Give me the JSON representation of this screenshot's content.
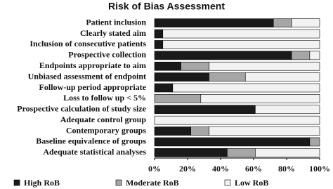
{
  "chart_data": {
    "type": "stacked-bar-horizontal",
    "title": "Risk of Bias Assessment",
    "categories": [
      "Patient inclusion",
      "Clearly stated aim",
      "Inclusion of consecutive patients",
      "Prospective collection",
      "Endpoints appropriate to aim",
      "Unbiased assessment of endpoint",
      "Follow-up period appropriate",
      "Loss to follow up < 5%",
      "Prospective calculation of study size",
      "Adequate control group",
      "Contemporary groups",
      "Baseline equivalence of groups",
      "Adequate statistical analyses"
    ],
    "series": [
      {
        "name": "High RoB",
        "color": "#1a1a1a",
        "values": [
          72,
          5,
          5,
          83,
          16,
          33,
          11,
          0,
          61,
          0,
          22,
          94,
          44
        ]
      },
      {
        "name": "Moderate RoB",
        "color": "#a6a6a6",
        "values": [
          11,
          0,
          0,
          11,
          17,
          22,
          0,
          28,
          0,
          0,
          11,
          6,
          17
        ]
      },
      {
        "name": "Low RoB",
        "color": "#f2f2f2",
        "values": [
          17,
          95,
          95,
          6,
          67,
          45,
          89,
          72,
          39,
          100,
          67,
          0,
          39
        ]
      }
    ],
    "xlim": [
      0,
      100
    ],
    "xticks": [
      {
        "value": 0,
        "label": "0%"
      },
      {
        "value": 20,
        "label": "20%"
      },
      {
        "value": 40,
        "label": "40%"
      },
      {
        "value": 60,
        "label": "60%"
      },
      {
        "value": 80,
        "label": "80%"
      },
      {
        "value": 100,
        "label": "100%"
      }
    ],
    "legend": "bottom"
  }
}
